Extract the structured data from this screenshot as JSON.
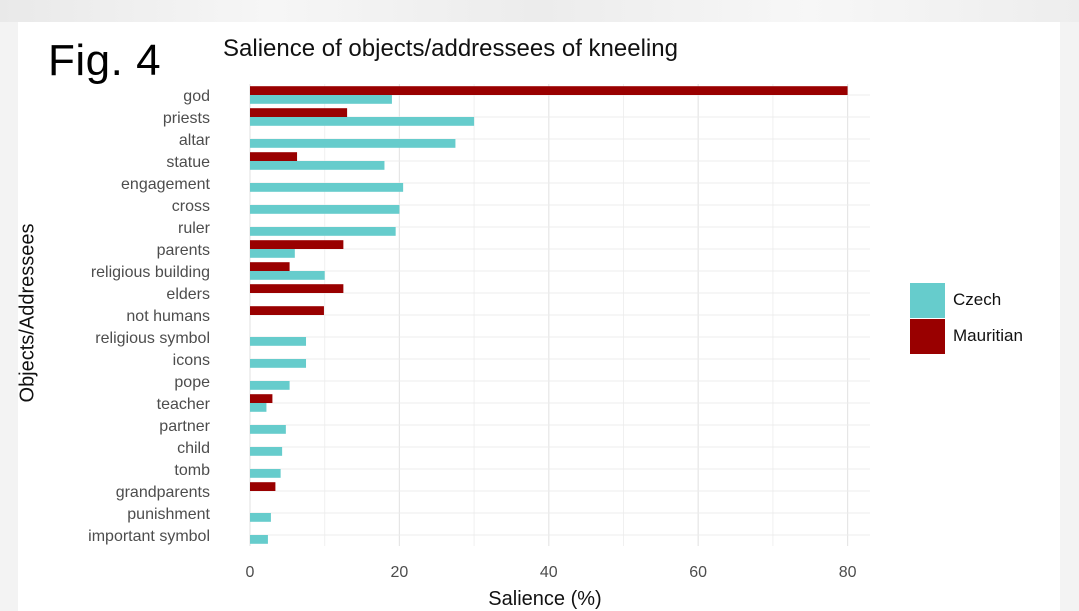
{
  "figure": {
    "label": "Fig. 4"
  },
  "chart_data": {
    "type": "bar",
    "orientation": "horizontal",
    "title": "Salience of objects/addressees of kneeling",
    "xlabel": "Salience (%)",
    "ylabel": "Objects/Addressees",
    "xlim": [
      0,
      83
    ],
    "xticks": [
      0,
      20,
      40,
      60,
      80
    ],
    "grid": true,
    "legend_position": "right",
    "categories": [
      "god",
      "priests",
      "altar",
      "statue",
      "engagement",
      "cross",
      "ruler",
      "parents",
      "religious building",
      "elders",
      "not humans",
      "religious symbol",
      "icons",
      "pope",
      "teacher",
      "partner",
      "child",
      "tomb",
      "grandparents",
      "punishment",
      "important symbol"
    ],
    "series": [
      {
        "name": "Czech",
        "color": "#66cccc",
        "values": [
          19,
          30,
          27.5,
          18,
          20.5,
          20,
          19.5,
          6,
          10,
          null,
          null,
          7.5,
          7.5,
          5.3,
          2.2,
          4.8,
          4.3,
          4.1,
          null,
          2.8,
          2.4
        ]
      },
      {
        "name": "Mauritian",
        "color": "#990000",
        "values": [
          80,
          13,
          null,
          6.3,
          null,
          null,
          null,
          12.5,
          5.3,
          12.5,
          9.9,
          null,
          null,
          null,
          3,
          null,
          null,
          null,
          3.4,
          null,
          null
        ]
      }
    ]
  }
}
